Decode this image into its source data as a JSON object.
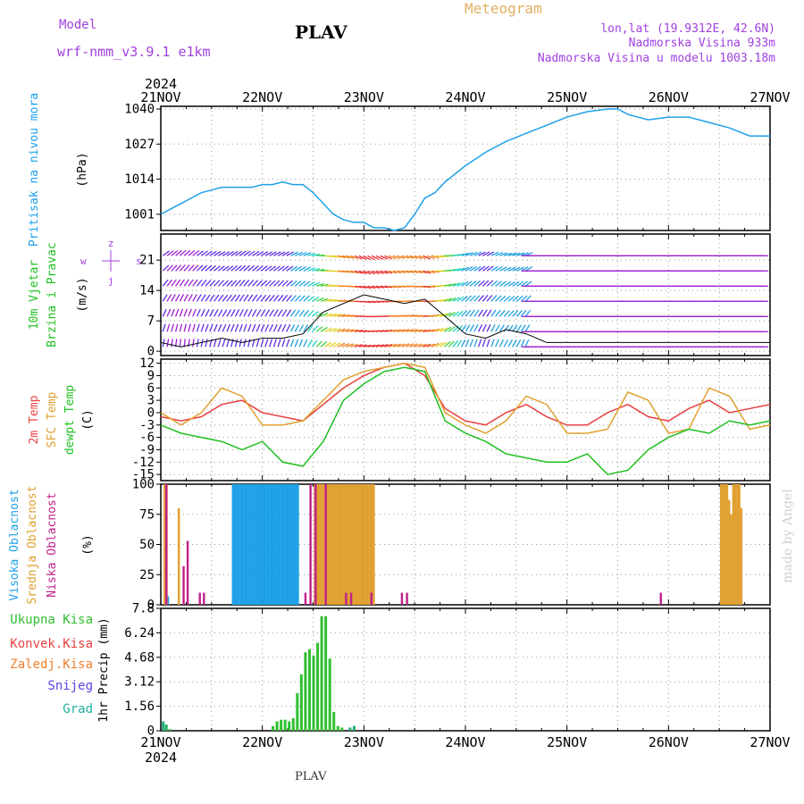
{
  "header": {
    "model_label": "Model",
    "model_name": "wrf-nmm_v3.9.1 e1km",
    "title": "PLAV",
    "meteogram_label": "Meteogram",
    "lonlat": "lon,lat (19.9312E, 42.6N)",
    "elevation": "Nadmorska Visina 933m",
    "model_elevation": "Nadmorska Visina u modelu 1003.18m",
    "footer_title": "PLAV",
    "watermark": "made by Angel"
  },
  "colors": {
    "pressure": "#1ea0e8",
    "temp2m": "#e84040",
    "sfc_temp": "#e0a030",
    "dewpoint": "#20c020",
    "high_cloud": "#1ea0e8",
    "mid_cloud": "#e0a030",
    "low_cloud": "#c0208a",
    "total_precip": "#30c030",
    "purple_text": "#a040e0"
  },
  "chart_data": [
    {
      "type": "line",
      "title": "Pritisak na nivou mora",
      "ylabel": "(hPa)",
      "yticks": [
        1001,
        1014,
        1027,
        1040
      ],
      "ylim": [
        995,
        1041
      ],
      "x_unit": "days since 2024-11-21 00UTC",
      "series": [
        {
          "name": "Pritisak na nivou mora",
          "x": [
            0,
            0.1,
            0.2,
            0.3,
            0.4,
            0.5,
            0.6,
            0.7,
            0.8,
            0.9,
            1.0,
            1.1,
            1.2,
            1.3,
            1.4,
            1.5,
            1.6,
            1.7,
            1.8,
            1.9,
            2.0,
            2.1,
            2.2,
            2.3,
            2.4,
            2.5,
            2.6,
            2.7,
            2.8,
            2.9,
            3.0,
            3.2,
            3.4,
            3.6,
            3.8,
            4.0,
            4.2,
            4.4,
            4.5,
            4.6,
            4.8,
            5.0,
            5.2,
            5.4,
            5.6,
            5.8,
            6.0
          ],
          "values": [
            1001,
            1003,
            1005,
            1007,
            1009,
            1010,
            1011,
            1011,
            1011,
            1011,
            1012,
            1012,
            1013,
            1012,
            1012,
            1009,
            1005,
            1001,
            999,
            998,
            998,
            996,
            996,
            995,
            996,
            1001,
            1007,
            1009,
            1013,
            1016,
            1019,
            1024,
            1028,
            1031,
            1034,
            1037,
            1039,
            1040,
            1040,
            1038,
            1036,
            1037,
            1037,
            1035,
            1033,
            1030,
            1030
          ]
        }
      ]
    },
    {
      "type": "line",
      "title": "10m Vjetar Brzina i Pravac",
      "ylabel": "(m/s)",
      "yticks": [
        0,
        7,
        14,
        21
      ],
      "ylim": [
        -1,
        27
      ],
      "legend_compass": [
        "w",
        "s",
        "z",
        "j"
      ],
      "series": [
        {
          "name": "10m Vjetar Brzina",
          "x": [
            0,
            0.2,
            0.4,
            0.6,
            0.8,
            1.0,
            1.2,
            1.4,
            1.6,
            1.8,
            2.0,
            2.2,
            2.4,
            2.6,
            2.8,
            3.0,
            3.2,
            3.4,
            3.6,
            3.8,
            4.0,
            4.5,
            5.0,
            5.5,
            6.0
          ],
          "values": [
            2,
            1,
            2,
            3,
            2,
            3,
            3,
            4,
            9,
            11,
            13,
            12,
            11,
            12,
            8,
            4,
            3,
            5,
            4,
            2,
            2,
            2,
            2,
            2,
            2
          ]
        }
      ]
    },
    {
      "type": "line",
      "title": "",
      "ylabel": "(C)",
      "yticks": [
        -15,
        -12,
        -9,
        -6,
        -3,
        0,
        3,
        6,
        9,
        12
      ],
      "ylim": [
        -16.5,
        13
      ],
      "series": [
        {
          "name": "2m Temp",
          "x": [
            0,
            0.2,
            0.4,
            0.6,
            0.8,
            1.0,
            1.2,
            1.4,
            1.6,
            1.8,
            2.0,
            2.2,
            2.4,
            2.6,
            2.8,
            3.0,
            3.2,
            3.4,
            3.6,
            3.8,
            4.0,
            4.2,
            4.4,
            4.6,
            4.8,
            5.0,
            5.2,
            5.4,
            5.6,
            5.8,
            6.0
          ],
          "values": [
            -1,
            -2,
            -1,
            2,
            3,
            0,
            -1,
            -2,
            2,
            6,
            9,
            11,
            12,
            9,
            1,
            -2,
            -3,
            0,
            2,
            -1,
            -3,
            -3,
            0,
            2,
            -1,
            -2,
            1,
            3,
            0,
            1,
            2
          ]
        },
        {
          "name": "SFC Temp",
          "x": [
            0,
            0.2,
            0.4,
            0.6,
            0.8,
            1.0,
            1.2,
            1.4,
            1.6,
            1.8,
            2.0,
            2.2,
            2.4,
            2.6,
            2.8,
            3.0,
            3.2,
            3.4,
            3.6,
            3.8,
            4.0,
            4.2,
            4.4,
            4.6,
            4.8,
            5.0,
            5.2,
            5.4,
            5.6,
            5.8,
            6.0
          ],
          "values": [
            0,
            -3,
            0,
            6,
            4,
            -3,
            -3,
            -2,
            3,
            8,
            10,
            11,
            12,
            11,
            0,
            -3,
            -5,
            -2,
            4,
            2,
            -5,
            -5,
            -4,
            5,
            3,
            -5,
            -4,
            6,
            4,
            -4,
            -3
          ]
        },
        {
          "name": "dewpt Temp",
          "x": [
            0,
            0.2,
            0.4,
            0.6,
            0.8,
            1.0,
            1.2,
            1.4,
            1.6,
            1.8,
            2.0,
            2.2,
            2.4,
            2.6,
            2.8,
            3.0,
            3.2,
            3.4,
            3.6,
            3.8,
            4.0,
            4.2,
            4.4,
            4.6,
            4.8,
            5.0,
            5.2,
            5.4,
            5.6,
            5.8,
            6.0
          ],
          "values": [
            -3,
            -5,
            -6,
            -7,
            -9,
            -7,
            -12,
            -13,
            -7,
            3,
            7,
            10,
            11,
            10,
            -2,
            -5,
            -7,
            -10,
            -11,
            -12,
            -12,
            -10,
            -15,
            -14,
            -9,
            -6,
            -4,
            -5,
            -2,
            -3,
            -2
          ]
        }
      ]
    },
    {
      "type": "bar",
      "title": "",
      "ylabel": "(%)",
      "yticks": [
        0,
        25,
        50,
        75,
        100
      ],
      "ylim": [
        0,
        100
      ],
      "series": [
        {
          "name": "Visoka Oblacnost",
          "x": [
            0.06,
            0.7,
            0.72,
            0.74,
            0.76,
            0.78,
            0.8,
            0.82,
            0.84,
            0.86,
            0.88,
            0.9,
            0.92,
            0.94,
            0.96,
            0.98,
            1.0,
            1.02,
            1.04,
            1.06,
            1.08,
            1.1,
            1.12,
            1.14,
            1.16,
            1.18,
            1.2,
            1.22,
            1.24,
            1.26,
            1.28,
            1.3,
            1.32,
            1.34
          ],
          "values": [
            7,
            100,
            100,
            100,
            100,
            100,
            100,
            100,
            100,
            100,
            100,
            100,
            100,
            100,
            100,
            100,
            100,
            100,
            100,
            100,
            100,
            100,
            100,
            100,
            100,
            100,
            100,
            100,
            100,
            100,
            100,
            100,
            100,
            100
          ]
        },
        {
          "name": "Srednja Oblacnost",
          "x": [
            0.02,
            0.04,
            0.16,
            1.5,
            1.52,
            1.54,
            1.56,
            1.58,
            1.6,
            1.62,
            1.64,
            1.66,
            1.68,
            1.7,
            1.72,
            1.74,
            1.76,
            1.78,
            1.8,
            1.82,
            1.84,
            1.86,
            1.88,
            1.9,
            1.92,
            1.94,
            1.96,
            1.98,
            2.0,
            2.02,
            2.04,
            2.06,
            2.08,
            5.5,
            5.52,
            5.54,
            5.56,
            5.58,
            5.6,
            5.62,
            5.64,
            5.66,
            5.68,
            5.7
          ],
          "values": [
            100,
            100,
            80,
            100,
            100,
            100,
            100,
            100,
            100,
            100,
            100,
            100,
            100,
            100,
            100,
            100,
            100,
            100,
            100,
            100,
            100,
            100,
            100,
            100,
            100,
            100,
            100,
            100,
            100,
            100,
            100,
            100,
            100,
            100,
            100,
            100,
            100,
            87,
            75,
            100,
            100,
            100,
            100,
            80
          ]
        },
        {
          "name": "Niska Oblacnost",
          "x": [
            0.03,
            0.2,
            0.24,
            0.36,
            0.4,
            1.4,
            1.45,
            1.5,
            1.6,
            1.8,
            1.85,
            2.05,
            2.35,
            2.4,
            4.9
          ],
          "values": [
            100,
            32,
            53,
            10,
            10,
            10,
            100,
            100,
            100,
            10,
            10,
            10,
            10,
            10,
            10
          ]
        }
      ]
    },
    {
      "type": "bar",
      "title": "",
      "ylabel": "1hr Precip (mm)",
      "yticks": [
        0,
        1.56,
        3.12,
        4.68,
        6.24,
        7.8
      ],
      "ylim": [
        0,
        7.8
      ],
      "series": [
        {
          "name": "Ukupna Kisa",
          "x": [
            0.02,
            0.05,
            0.09,
            1.1,
            1.14,
            1.18,
            1.22,
            1.26,
            1.3,
            1.34,
            1.38,
            1.42,
            1.46,
            1.5,
            1.54,
            1.58,
            1.62,
            1.66,
            1.7,
            1.74,
            1.78,
            1.86,
            1.9
          ],
          "values": [
            0.6,
            0.4,
            0.1,
            0.3,
            0.6,
            0.7,
            0.7,
            0.6,
            0.8,
            2.4,
            3.6,
            5.0,
            5.2,
            4.8,
            5.6,
            7.3,
            7.3,
            4.6,
            1.2,
            0.3,
            0.2,
            0.2,
            0.3
          ]
        },
        {
          "name": "Konvek.Kisa",
          "x": [],
          "values": []
        },
        {
          "name": "Zaledj.Kisa",
          "x": [],
          "values": []
        },
        {
          "name": "Snijeg",
          "x": [],
          "values": []
        },
        {
          "name": "Grad",
          "x": [
            0.02,
            0.05,
            1.86,
            1.9
          ],
          "values": [
            0.6,
            0.4,
            0.2,
            0.3
          ]
        }
      ]
    }
  ],
  "xaxis": {
    "year_label": "2024",
    "day_labels": [
      "21NOV",
      "22NOV",
      "23NOV",
      "24NOV",
      "25NOV",
      "26NOV",
      "27NOV"
    ]
  },
  "panel_labels": {
    "p1": [
      {
        "text": "Pritisak na nivou mora",
        "color": "#1ea0e8"
      },
      {
        "text": "(hPa)",
        "color": "#000000"
      }
    ],
    "p2": [
      {
        "text": "10m Vjetar",
        "color": "#20c020"
      },
      {
        "text": "Brzina i Pravac",
        "color": "#20c020"
      },
      {
        "text": "(m/s)",
        "color": "#000000"
      }
    ],
    "p3": [
      {
        "text": "2m Temp",
        "color": "#e84040"
      },
      {
        "text": "SFC Temp",
        "color": "#e0a030"
      },
      {
        "text": "dewpt Temp",
        "color": "#20c020"
      },
      {
        "text": "(C)",
        "color": "#000000"
      }
    ],
    "p4": [
      {
        "text": "Visoka Oblacnost",
        "color": "#1ea0e8"
      },
      {
        "text": "Srednja Oblacnost",
        "color": "#e0a030"
      },
      {
        "text": "Niska Oblacnost",
        "color": "#c0208a"
      },
      {
        "text": "(%)",
        "color": "#000000"
      }
    ],
    "p5_legend": [
      {
        "text": "Ukupna Kisa",
        "color": "#30c030"
      },
      {
        "text": "Konvek.Kisa",
        "color": "#e84040"
      },
      {
        "text": "Zaledj.Kisa",
        "color": "#f08030"
      },
      {
        "text": "Snijeg",
        "color": "#6040e0"
      },
      {
        "text": "Grad",
        "color": "#20b0a0"
      }
    ]
  }
}
